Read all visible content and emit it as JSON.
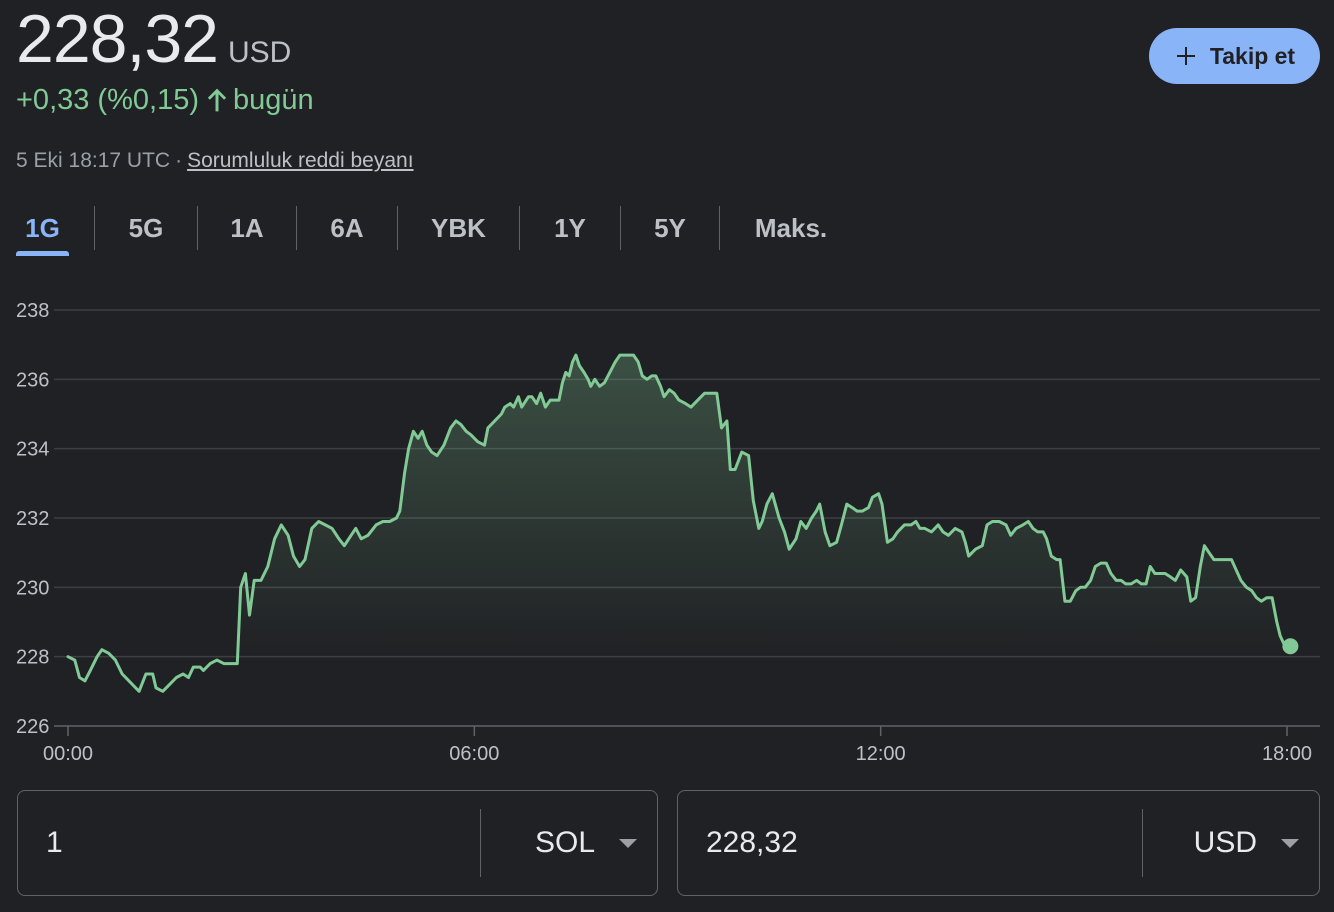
{
  "quote": {
    "price": "228,32",
    "currency": "USD",
    "change": "+0,33 (%0,15)",
    "change_period": "bugün",
    "timestamp": "5 Eki 18:17 UTC",
    "separator": "·",
    "disclaimer_link": "Sorumluluk reddi beyanı"
  },
  "follow_button": {
    "label": "Takip et",
    "color": "#8ab4f8"
  },
  "tabs": [
    {
      "label": "1G",
      "active": true
    },
    {
      "label": "5G",
      "active": false
    },
    {
      "label": "1A",
      "active": false
    },
    {
      "label": "6A",
      "active": false
    },
    {
      "label": "YBK",
      "active": false
    },
    {
      "label": "1Y",
      "active": false
    },
    {
      "label": "5Y",
      "active": false
    },
    {
      "label": "Maks.",
      "active": false
    }
  ],
  "colors": {
    "background": "#202124",
    "positive": "#81c995",
    "accent": "#8ab4f8",
    "gridline": "#3c4043"
  },
  "chart_data": {
    "type": "line",
    "title": "",
    "xlabel": "",
    "ylabel": "",
    "x_unit": "hours (UTC)",
    "xlim": [
      0,
      18.5
    ],
    "ylim": [
      226,
      238
    ],
    "y_ticks": [
      "238",
      "236",
      "234",
      "232",
      "230",
      "228",
      "226"
    ],
    "y_tick_values": [
      238,
      236,
      234,
      232,
      230,
      228,
      226
    ],
    "x_ticks": [
      "00:00",
      "06:00",
      "12:00",
      "18:00"
    ],
    "x_tick_values": [
      0,
      6,
      12,
      18
    ],
    "grid": true,
    "series": [
      {
        "color": "#81c995",
        "points": [
          [
            0.0,
            228.0
          ],
          [
            0.1,
            227.9
          ],
          [
            0.17,
            227.4
          ],
          [
            0.25,
            227.3
          ],
          [
            0.33,
            227.6
          ],
          [
            0.43,
            228.0
          ],
          [
            0.5,
            228.2
          ],
          [
            0.6,
            228.1
          ],
          [
            0.7,
            227.9
          ],
          [
            0.8,
            227.5
          ],
          [
            0.9,
            227.3
          ],
          [
            1.0,
            227.1
          ],
          [
            1.05,
            227.0
          ],
          [
            1.15,
            227.5
          ],
          [
            1.25,
            227.5
          ],
          [
            1.3,
            227.1
          ],
          [
            1.4,
            227.0
          ],
          [
            1.5,
            227.2
          ],
          [
            1.6,
            227.4
          ],
          [
            1.7,
            227.5
          ],
          [
            1.78,
            227.4
          ],
          [
            1.85,
            227.7
          ],
          [
            1.95,
            227.7
          ],
          [
            2.0,
            227.6
          ],
          [
            2.1,
            227.8
          ],
          [
            2.2,
            227.9
          ],
          [
            2.3,
            227.8
          ],
          [
            2.4,
            227.8
          ],
          [
            2.5,
            227.8
          ],
          [
            2.55,
            230.0
          ],
          [
            2.62,
            230.4
          ],
          [
            2.68,
            229.2
          ],
          [
            2.75,
            230.2
          ],
          [
            2.85,
            230.2
          ],
          [
            2.95,
            230.6
          ],
          [
            3.05,
            231.4
          ],
          [
            3.15,
            231.8
          ],
          [
            3.25,
            231.5
          ],
          [
            3.33,
            230.9
          ],
          [
            3.42,
            230.6
          ],
          [
            3.5,
            230.8
          ],
          [
            3.6,
            231.7
          ],
          [
            3.7,
            231.9
          ],
          [
            3.8,
            231.8
          ],
          [
            3.9,
            231.7
          ],
          [
            4.0,
            231.4
          ],
          [
            4.08,
            231.2
          ],
          [
            4.18,
            231.5
          ],
          [
            4.25,
            231.7
          ],
          [
            4.33,
            231.4
          ],
          [
            4.43,
            231.5
          ],
          [
            4.55,
            231.8
          ],
          [
            4.65,
            231.9
          ],
          [
            4.75,
            231.9
          ],
          [
            4.85,
            232.0
          ],
          [
            4.9,
            232.2
          ],
          [
            4.97,
            233.3
          ],
          [
            5.03,
            234.0
          ],
          [
            5.1,
            234.5
          ],
          [
            5.17,
            234.3
          ],
          [
            5.23,
            234.5
          ],
          [
            5.3,
            234.1
          ],
          [
            5.37,
            233.9
          ],
          [
            5.45,
            233.8
          ],
          [
            5.55,
            234.1
          ],
          [
            5.65,
            234.6
          ],
          [
            5.73,
            234.8
          ],
          [
            5.8,
            234.7
          ],
          [
            5.88,
            234.5
          ],
          [
            5.95,
            234.4
          ],
          [
            6.05,
            234.2
          ],
          [
            6.15,
            234.1
          ],
          [
            6.2,
            234.6
          ],
          [
            6.3,
            234.8
          ],
          [
            6.4,
            235.0
          ],
          [
            6.45,
            235.2
          ],
          [
            6.53,
            235.3
          ],
          [
            6.58,
            235.2
          ],
          [
            6.65,
            235.5
          ],
          [
            6.7,
            235.2
          ],
          [
            6.8,
            235.5
          ],
          [
            6.85,
            235.5
          ],
          [
            6.92,
            235.3
          ],
          [
            6.98,
            235.6
          ],
          [
            7.05,
            235.2
          ],
          [
            7.12,
            235.4
          ],
          [
            7.2,
            235.4
          ],
          [
            7.25,
            235.4
          ],
          [
            7.3,
            235.9
          ],
          [
            7.35,
            236.2
          ],
          [
            7.4,
            236.1
          ],
          [
            7.45,
            236.5
          ],
          [
            7.5,
            236.7
          ],
          [
            7.55,
            236.4
          ],
          [
            7.62,
            236.2
          ],
          [
            7.68,
            236.0
          ],
          [
            7.72,
            235.8
          ],
          [
            7.78,
            236.0
          ],
          [
            7.85,
            235.8
          ],
          [
            7.92,
            235.9
          ],
          [
            8.0,
            236.2
          ],
          [
            8.08,
            236.5
          ],
          [
            8.15,
            236.7
          ],
          [
            8.25,
            236.7
          ],
          [
            8.35,
            236.7
          ],
          [
            8.42,
            236.5
          ],
          [
            8.48,
            236.1
          ],
          [
            8.55,
            236.0
          ],
          [
            8.62,
            236.1
          ],
          [
            8.68,
            236.1
          ],
          [
            8.75,
            235.8
          ],
          [
            8.8,
            235.5
          ],
          [
            8.88,
            235.7
          ],
          [
            8.95,
            235.6
          ],
          [
            9.02,
            235.4
          ],
          [
            9.12,
            235.3
          ],
          [
            9.2,
            235.2
          ],
          [
            9.3,
            235.4
          ],
          [
            9.4,
            235.6
          ],
          [
            9.5,
            235.6
          ],
          [
            9.58,
            235.6
          ],
          [
            9.65,
            234.6
          ],
          [
            9.73,
            234.8
          ],
          [
            9.78,
            233.4
          ],
          [
            9.85,
            233.4
          ],
          [
            9.95,
            233.9
          ],
          [
            10.05,
            233.8
          ],
          [
            10.12,
            232.5
          ],
          [
            10.2,
            231.7
          ],
          [
            10.25,
            231.9
          ],
          [
            10.32,
            232.4
          ],
          [
            10.4,
            232.7
          ],
          [
            10.5,
            232.0
          ],
          [
            10.58,
            231.6
          ],
          [
            10.65,
            231.1
          ],
          [
            10.75,
            231.4
          ],
          [
            10.82,
            231.9
          ],
          [
            10.9,
            231.7
          ],
          [
            10.98,
            232.0
          ],
          [
            11.05,
            232.2
          ],
          [
            11.1,
            232.4
          ],
          [
            11.18,
            231.6
          ],
          [
            11.25,
            231.2
          ],
          [
            11.35,
            231.3
          ],
          [
            11.42,
            231.8
          ],
          [
            11.5,
            232.4
          ],
          [
            11.58,
            232.3
          ],
          [
            11.65,
            232.2
          ],
          [
            11.73,
            232.2
          ],
          [
            11.82,
            232.3
          ],
          [
            11.88,
            232.6
          ],
          [
            11.97,
            232.7
          ],
          [
            12.02,
            232.4
          ],
          [
            12.1,
            231.3
          ],
          [
            12.18,
            231.4
          ],
          [
            12.25,
            231.6
          ],
          [
            12.35,
            231.8
          ],
          [
            12.45,
            231.8
          ],
          [
            12.52,
            231.9
          ],
          [
            12.58,
            231.7
          ],
          [
            12.65,
            231.7
          ],
          [
            12.75,
            231.6
          ],
          [
            12.85,
            231.8
          ],
          [
            12.92,
            231.6
          ],
          [
            13.0,
            231.5
          ],
          [
            13.1,
            231.7
          ],
          [
            13.2,
            231.6
          ],
          [
            13.25,
            231.3
          ],
          [
            13.3,
            230.9
          ],
          [
            13.4,
            231.1
          ],
          [
            13.5,
            231.2
          ],
          [
            13.57,
            231.8
          ],
          [
            13.65,
            231.9
          ],
          [
            13.75,
            231.9
          ],
          [
            13.85,
            231.8
          ],
          [
            13.92,
            231.5
          ],
          [
            14.0,
            231.7
          ],
          [
            14.1,
            231.8
          ],
          [
            14.18,
            231.9
          ],
          [
            14.25,
            231.7
          ],
          [
            14.32,
            231.6
          ],
          [
            14.4,
            231.6
          ],
          [
            14.45,
            231.4
          ],
          [
            14.52,
            230.9
          ],
          [
            14.6,
            230.8
          ],
          [
            14.65,
            230.8
          ],
          [
            14.72,
            229.6
          ],
          [
            14.8,
            229.6
          ],
          [
            14.88,
            229.9
          ],
          [
            14.95,
            230.0
          ],
          [
            15.02,
            230.0
          ],
          [
            15.1,
            230.2
          ],
          [
            15.17,
            230.6
          ],
          [
            15.25,
            230.7
          ],
          [
            15.33,
            230.7
          ],
          [
            15.4,
            230.4
          ],
          [
            15.48,
            230.2
          ],
          [
            15.55,
            230.2
          ],
          [
            15.62,
            230.1
          ],
          [
            15.7,
            230.1
          ],
          [
            15.78,
            230.2
          ],
          [
            15.85,
            230.1
          ],
          [
            15.92,
            230.1
          ],
          [
            15.98,
            230.6
          ],
          [
            16.05,
            230.4
          ],
          [
            16.12,
            230.4
          ],
          [
            16.2,
            230.4
          ],
          [
            16.28,
            230.3
          ],
          [
            16.35,
            230.2
          ],
          [
            16.43,
            230.5
          ],
          [
            16.52,
            230.3
          ],
          [
            16.58,
            229.6
          ],
          [
            16.65,
            229.7
          ],
          [
            16.72,
            230.6
          ],
          [
            16.78,
            231.2
          ],
          [
            16.85,
            231.0
          ],
          [
            16.92,
            230.8
          ],
          [
            17.0,
            230.8
          ],
          [
            17.1,
            230.8
          ],
          [
            17.18,
            230.8
          ],
          [
            17.25,
            230.5
          ],
          [
            17.32,
            230.2
          ],
          [
            17.4,
            230.0
          ],
          [
            17.48,
            229.9
          ],
          [
            17.55,
            229.7
          ],
          [
            17.62,
            229.6
          ],
          [
            17.7,
            229.7
          ],
          [
            17.78,
            229.7
          ],
          [
            17.85,
            229.0
          ],
          [
            17.9,
            228.6
          ],
          [
            17.97,
            228.3
          ],
          [
            18.05,
            228.3
          ]
        ]
      }
    ]
  },
  "converter": {
    "from": {
      "value": "1",
      "unit": "SOL"
    },
    "to": {
      "value": "228,32",
      "unit": "USD"
    }
  }
}
